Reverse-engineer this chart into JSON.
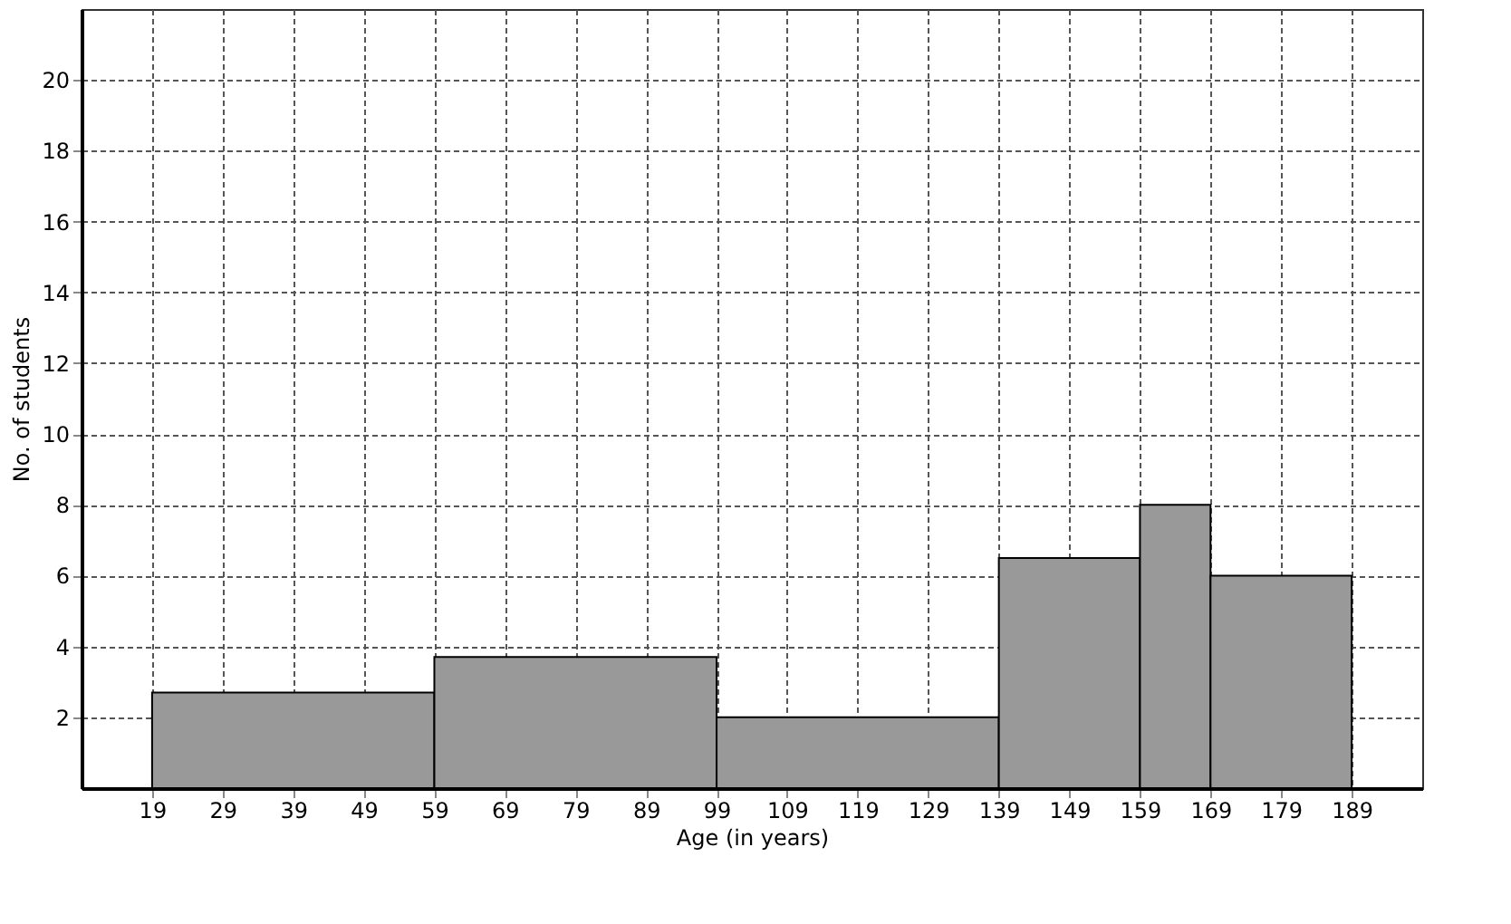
{
  "chart_data": {
    "type": "histogram",
    "xlabel": "Age (in years)",
    "ylabel": "No. of students",
    "bins": [
      19,
      59,
      99,
      139,
      159,
      169,
      189
    ],
    "values": [
      2.7,
      3.7,
      2,
      6.5,
      8,
      6
    ],
    "color": "#999999",
    "xlim": [
      9,
      199
    ],
    "xticks": [
      19,
      29,
      39,
      49,
      59,
      69,
      79,
      89,
      99,
      109,
      119,
      129,
      139,
      149,
      159,
      169,
      179,
      189
    ],
    "ylim": [
      0,
      22
    ],
    "yticks": [
      2,
      4,
      6,
      8,
      10,
      12,
      14,
      16,
      18,
      20
    ],
    "grid": true
  }
}
